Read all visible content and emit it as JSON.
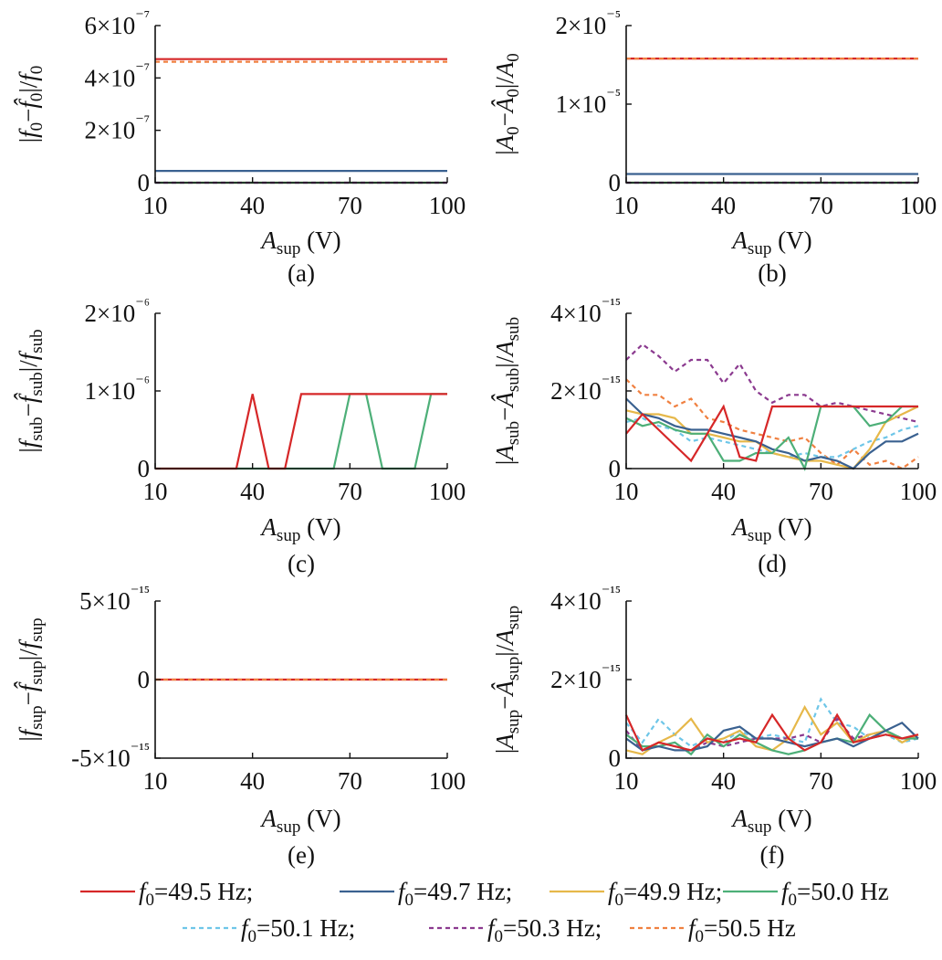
{
  "chart_data": [
    {
      "type": "line",
      "panel_label": "(a)",
      "xlabel": "A_sup (V)",
      "ylabel": "|f0 - f̂0|/f0",
      "x": [
        10,
        100
      ],
      "xticks": [
        "10",
        "40",
        "70",
        "100"
      ],
      "yticks": [
        {
          "v": 0,
          "t": "0"
        },
        {
          "v": 2,
          "t": "2×10⁻⁷"
        },
        {
          "v": 4,
          "t": "4×10⁻⁷"
        },
        {
          "v": 6,
          "t": "6×10⁻⁷"
        }
      ],
      "ylim": [
        0,
        6
      ],
      "series": [
        {
          "name": "f0=49.5 Hz",
          "x": [
            10,
            100
          ],
          "values": [
            4.72,
            4.72
          ]
        },
        {
          "name": "f0=49.7 Hz",
          "x": [
            10,
            100
          ],
          "values": [
            0.45,
            0.45
          ]
        },
        {
          "name": "f0=49.9 Hz",
          "x": [
            10,
            100
          ],
          "values": [
            0.0,
            0.0
          ]
        },
        {
          "name": "f0=50.0 Hz",
          "x": [
            10,
            100
          ],
          "values": [
            0.0,
            0.0
          ]
        },
        {
          "name": "f0=50.1 Hz",
          "x": [
            10,
            100
          ],
          "values": [
            0.0,
            0.0
          ]
        },
        {
          "name": "f0=50.3 Hz",
          "x": [
            10,
            100
          ],
          "values": [
            0.0,
            0.0
          ]
        },
        {
          "name": "f0=50.5 Hz",
          "x": [
            10,
            100
          ],
          "values": [
            4.62,
            4.62
          ]
        }
      ]
    },
    {
      "type": "line",
      "panel_label": "(b)",
      "xlabel": "A_sup (V)",
      "ylabel": "|A0 - Â0|/A0",
      "xticks": [
        "10",
        "40",
        "70",
        "100"
      ],
      "yticks": [
        {
          "v": 0,
          "t": "0"
        },
        {
          "v": 1,
          "t": "1×10⁻⁵"
        },
        {
          "v": 2,
          "t": "2×10⁻⁵"
        }
      ],
      "ylim": [
        0,
        2
      ],
      "series": [
        {
          "name": "f0=49.5 Hz",
          "x": [
            10,
            100
          ],
          "values": [
            1.58,
            1.58
          ]
        },
        {
          "name": "f0=49.7 Hz",
          "x": [
            10,
            100
          ],
          "values": [
            0.11,
            0.11
          ]
        },
        {
          "name": "f0=49.9 Hz",
          "x": [
            10,
            100
          ],
          "values": [
            0.0,
            0.0
          ]
        },
        {
          "name": "f0=50.0 Hz",
          "x": [
            10,
            100
          ],
          "values": [
            0.0,
            0.0
          ]
        },
        {
          "name": "f0=50.1 Hz",
          "x": [
            10,
            100
          ],
          "values": [
            0.0,
            0.0
          ]
        },
        {
          "name": "f0=50.3 Hz",
          "x": [
            10,
            100
          ],
          "values": [
            0.0,
            0.0
          ]
        },
        {
          "name": "f0=50.5 Hz",
          "x": [
            10,
            100
          ],
          "values": [
            1.58,
            1.58
          ]
        }
      ]
    },
    {
      "type": "line",
      "panel_label": "(c)",
      "xlabel": "A_sup (V)",
      "ylabel": "|f_sub - f̂_sub|/f_sub",
      "xticks": [
        "10",
        "40",
        "70",
        "100"
      ],
      "yticks": [
        {
          "v": 0,
          "t": "0"
        },
        {
          "v": 1,
          "t": "1×10⁻⁶"
        },
        {
          "v": 2,
          "t": "2×10⁻⁶"
        }
      ],
      "ylim": [
        0,
        2
      ],
      "series": [
        {
          "name": "f0=50.0 Hz",
          "x": [
            10,
            15,
            20,
            25,
            30,
            35,
            40,
            45,
            50,
            55,
            60,
            65,
            70,
            75,
            80,
            85,
            90,
            95,
            100
          ],
          "values": [
            0,
            0,
            0,
            0,
            0,
            0,
            0,
            0,
            0,
            0,
            0,
            0,
            0.96,
            0.96,
            0,
            0,
            0,
            0.96,
            0.96
          ]
        },
        {
          "name": "f0=49.5 Hz",
          "x": [
            10,
            15,
            20,
            25,
            30,
            35,
            40,
            45,
            50,
            55,
            60,
            65,
            70,
            75,
            80,
            85,
            90,
            95,
            100
          ],
          "values": [
            0,
            0,
            0,
            0,
            0,
            0,
            0.96,
            0,
            0,
            0.96,
            0.96,
            0.96,
            0.96,
            0.96,
            0.96,
            0.96,
            0.96,
            0.96,
            0.96
          ]
        }
      ]
    },
    {
      "type": "line",
      "panel_label": "(d)",
      "xlabel": "A_sup (V)",
      "ylabel": "|A_sub - Â_sub|/A_sub",
      "xticks": [
        "10",
        "40",
        "70",
        "100"
      ],
      "yticks": [
        {
          "v": 0,
          "t": "0"
        },
        {
          "v": 2,
          "t": "2×10⁻¹⁵"
        },
        {
          "v": 4,
          "t": "4×10⁻¹⁵"
        }
      ],
      "ylim": [
        0,
        4
      ],
      "series": [
        {
          "name": "f0=50.3 Hz",
          "x": [
            10,
            15,
            20,
            25,
            30,
            35,
            40,
            45,
            50,
            55,
            60,
            65,
            70,
            75,
            80,
            85,
            90,
            95,
            100
          ],
          "values": [
            2.8,
            3.2,
            2.9,
            2.5,
            2.8,
            2.8,
            2.2,
            2.7,
            2.0,
            1.7,
            1.9,
            1.9,
            1.6,
            1.7,
            1.6,
            1.5,
            1.4,
            1.3,
            1.2
          ]
        },
        {
          "name": "f0=50.5 Hz",
          "x": [
            10,
            15,
            20,
            25,
            30,
            35,
            40,
            45,
            50,
            55,
            60,
            65,
            70,
            75,
            80,
            85,
            90,
            95,
            100
          ],
          "values": [
            2.3,
            1.9,
            1.9,
            1.6,
            1.8,
            1.3,
            1.2,
            1.0,
            0.9,
            0.8,
            0.7,
            0.8,
            0.4,
            0.1,
            0.5,
            0.1,
            0.2,
            0.0,
            0.3
          ]
        },
        {
          "name": "f0=50.1 Hz",
          "x": [
            10,
            15,
            20,
            25,
            30,
            35,
            40,
            45,
            50,
            55,
            60,
            65,
            70,
            75,
            80,
            85,
            90,
            95,
            100
          ],
          "values": [
            1.2,
            1.3,
            1.1,
            1.0,
            0.7,
            0.8,
            0.7,
            0.6,
            0.5,
            0.4,
            0.3,
            0.4,
            0.3,
            0.3,
            0.5,
            0.7,
            0.8,
            1.0,
            1.1
          ]
        },
        {
          "name": "f0=49.9 Hz",
          "x": [
            10,
            15,
            20,
            25,
            30,
            35,
            40,
            45,
            50,
            55,
            60,
            65,
            70,
            75,
            80,
            85,
            90,
            95,
            100
          ],
          "values": [
            1.5,
            1.4,
            1.4,
            1.3,
            0.9,
            0.9,
            0.8,
            0.7,
            0.7,
            0.4,
            0.3,
            0.2,
            0.2,
            0.1,
            0.0,
            0.5,
            1.2,
            1.4,
            1.6
          ]
        },
        {
          "name": "f0=49.7 Hz",
          "x": [
            10,
            15,
            20,
            25,
            30,
            35,
            40,
            45,
            50,
            55,
            60,
            65,
            70,
            75,
            80,
            85,
            90,
            95,
            100
          ],
          "values": [
            1.8,
            1.4,
            1.3,
            1.1,
            1.0,
            1.0,
            0.9,
            0.8,
            0.7,
            0.5,
            0.4,
            0.2,
            0.3,
            0.2,
            0.0,
            0.4,
            0.7,
            0.7,
            0.9
          ]
        },
        {
          "name": "f0=50.0 Hz",
          "x": [
            10,
            15,
            20,
            25,
            30,
            35,
            40,
            45,
            50,
            55,
            60,
            65,
            70,
            75,
            80,
            85,
            90,
            95,
            100
          ],
          "values": [
            1.3,
            1.1,
            1.2,
            1.0,
            0.9,
            0.9,
            0.2,
            0.2,
            0.4,
            0.4,
            0.8,
            0.0,
            1.6,
            1.6,
            1.6,
            1.1,
            1.2,
            1.6,
            1.6
          ]
        },
        {
          "name": "f0=49.5 Hz",
          "x": [
            10,
            15,
            20,
            25,
            30,
            35,
            40,
            45,
            50,
            55,
            60,
            65,
            70,
            75,
            80,
            85,
            90,
            95,
            100
          ],
          "values": [
            0.9,
            1.4,
            1.0,
            0.6,
            0.2,
            0.9,
            1.6,
            0.3,
            0.2,
            1.6,
            1.6,
            1.6,
            1.6,
            1.6,
            1.6,
            1.6,
            1.6,
            1.6,
            1.6
          ]
        }
      ]
    },
    {
      "type": "line",
      "panel_label": "(e)",
      "xlabel": "A_sup (V)",
      "ylabel": "|f_sup - f̂_sup|/f_sup",
      "xticks": [
        "10",
        "40",
        "70",
        "100"
      ],
      "yticks": [
        {
          "v": -5,
          "t": "-5×10⁻¹⁵"
        },
        {
          "v": 0,
          "t": "0"
        },
        {
          "v": 5,
          "t": "5×10⁻¹⁵"
        }
      ],
      "ylim": [
        -5,
        5
      ],
      "series": [
        {
          "name": "f0=49.5 Hz",
          "x": [
            10,
            100
          ],
          "values": [
            0,
            0
          ]
        },
        {
          "name": "f0=50.5 Hz",
          "x": [
            10,
            100
          ],
          "values": [
            0,
            0
          ]
        }
      ]
    },
    {
      "type": "line",
      "panel_label": "(f)",
      "xlabel": "A_sup (V)",
      "ylabel": "|A_sup - Â_sup|/A_sup",
      "xticks": [
        "10",
        "40",
        "70",
        "100"
      ],
      "yticks": [
        {
          "v": 0,
          "t": "0"
        },
        {
          "v": 2,
          "t": "2×10⁻¹⁵"
        },
        {
          "v": 4,
          "t": "4×10⁻¹⁵"
        }
      ],
      "ylim": [
        0,
        4
      ],
      "series": [
        {
          "name": "f0=50.1 Hz",
          "x": [
            10,
            15,
            20,
            25,
            30,
            35,
            40,
            45,
            50,
            55,
            60,
            65,
            70,
            75,
            80,
            85,
            90,
            95,
            100
          ],
          "values": [
            0.9,
            0.4,
            1.0,
            0.6,
            0.3,
            0.5,
            0.4,
            0.7,
            0.5,
            0.6,
            0.5,
            0.4,
            1.5,
            0.9,
            0.8,
            0.5,
            0.6,
            0.4,
            0.5
          ]
        },
        {
          "name": "f0=50.3 Hz",
          "x": [
            10,
            15,
            20,
            25,
            30,
            35,
            40,
            45,
            50,
            55,
            60,
            65,
            70,
            75,
            80,
            85,
            90,
            95,
            100
          ],
          "values": [
            0.7,
            0.2,
            0.4,
            0.3,
            0.2,
            0.4,
            0.3,
            0.4,
            0.5,
            0.5,
            0.5,
            0.6,
            0.4,
            1.0,
            0.5,
            0.6,
            0.7,
            0.5,
            0.5
          ]
        },
        {
          "name": "f0=49.9 Hz",
          "x": [
            10,
            15,
            20,
            25,
            30,
            35,
            40,
            45,
            50,
            55,
            60,
            65,
            70,
            75,
            80,
            85,
            90,
            95,
            100
          ],
          "values": [
            0.2,
            0.1,
            0.4,
            0.6,
            1.0,
            0.4,
            0.5,
            0.7,
            0.3,
            0.2,
            0.5,
            1.3,
            0.6,
            0.9,
            0.4,
            0.6,
            0.7,
            0.4,
            0.6
          ]
        },
        {
          "name": "f0=50.0 Hz",
          "x": [
            10,
            15,
            20,
            25,
            30,
            35,
            40,
            45,
            50,
            55,
            60,
            65,
            70,
            75,
            80,
            85,
            90,
            95,
            100
          ],
          "values": [
            0.6,
            0.3,
            0.3,
            0.4,
            0.1,
            0.6,
            0.3,
            0.6,
            0.4,
            0.2,
            0.1,
            0.2,
            0.4,
            0.5,
            0.4,
            1.1,
            0.7,
            0.5,
            0.5
          ]
        },
        {
          "name": "f0=49.7 Hz",
          "x": [
            10,
            15,
            20,
            25,
            30,
            35,
            40,
            45,
            50,
            55,
            60,
            65,
            70,
            75,
            80,
            85,
            90,
            95,
            100
          ],
          "values": [
            0.5,
            0.2,
            0.3,
            0.2,
            0.2,
            0.3,
            0.7,
            0.8,
            0.5,
            0.5,
            0.4,
            0.3,
            0.4,
            0.5,
            0.3,
            0.5,
            0.7,
            0.9,
            0.5
          ]
        },
        {
          "name": "f0=49.5 Hz",
          "x": [
            10,
            15,
            20,
            25,
            30,
            35,
            40,
            45,
            50,
            55,
            60,
            65,
            70,
            75,
            80,
            85,
            90,
            95,
            100
          ],
          "values": [
            1.1,
            0.2,
            0.4,
            0.3,
            0.2,
            0.5,
            0.4,
            0.5,
            0.4,
            1.1,
            0.5,
            0.2,
            0.4,
            1.1,
            0.4,
            0.5,
            0.6,
            0.5,
            0.6
          ]
        }
      ]
    }
  ],
  "legend": {
    "position": "bottom",
    "entries": [
      {
        "name": "f0=49.5 Hz",
        "prefix": "f",
        "sub": "0",
        "label": "=49.5 Hz;",
        "color": "#d62728",
        "dash": "solid"
      },
      {
        "name": "f0=49.7 Hz",
        "prefix": "f",
        "sub": "0",
        "label": "=49.7 Hz;",
        "color": "#3a6190",
        "dash": "solid"
      },
      {
        "name": "f0=49.9 Hz",
        "prefix": "f",
        "sub": "0",
        "label": "=49.9 Hz;",
        "color": "#e6b84a",
        "dash": "solid"
      },
      {
        "name": "f0=50.0 Hz",
        "prefix": "f",
        "sub": "0",
        "label": "=50.0 Hz",
        "color": "#4daf78",
        "dash": "solid"
      },
      {
        "name": "f0=50.1 Hz",
        "prefix": "f",
        "sub": "0",
        "label": "=50.1 Hz;",
        "color": "#6ec6e8",
        "dash": "dashed"
      },
      {
        "name": "f0=50.3 Hz",
        "prefix": "f",
        "sub": "0",
        "label": "=50.3 Hz;",
        "color": "#8b3a8f",
        "dash": "dashed"
      },
      {
        "name": "f0=50.5 Hz",
        "prefix": "f",
        "sub": "0",
        "label": "=50.5 Hz",
        "color": "#f08040",
        "dash": "dashed"
      }
    ]
  }
}
